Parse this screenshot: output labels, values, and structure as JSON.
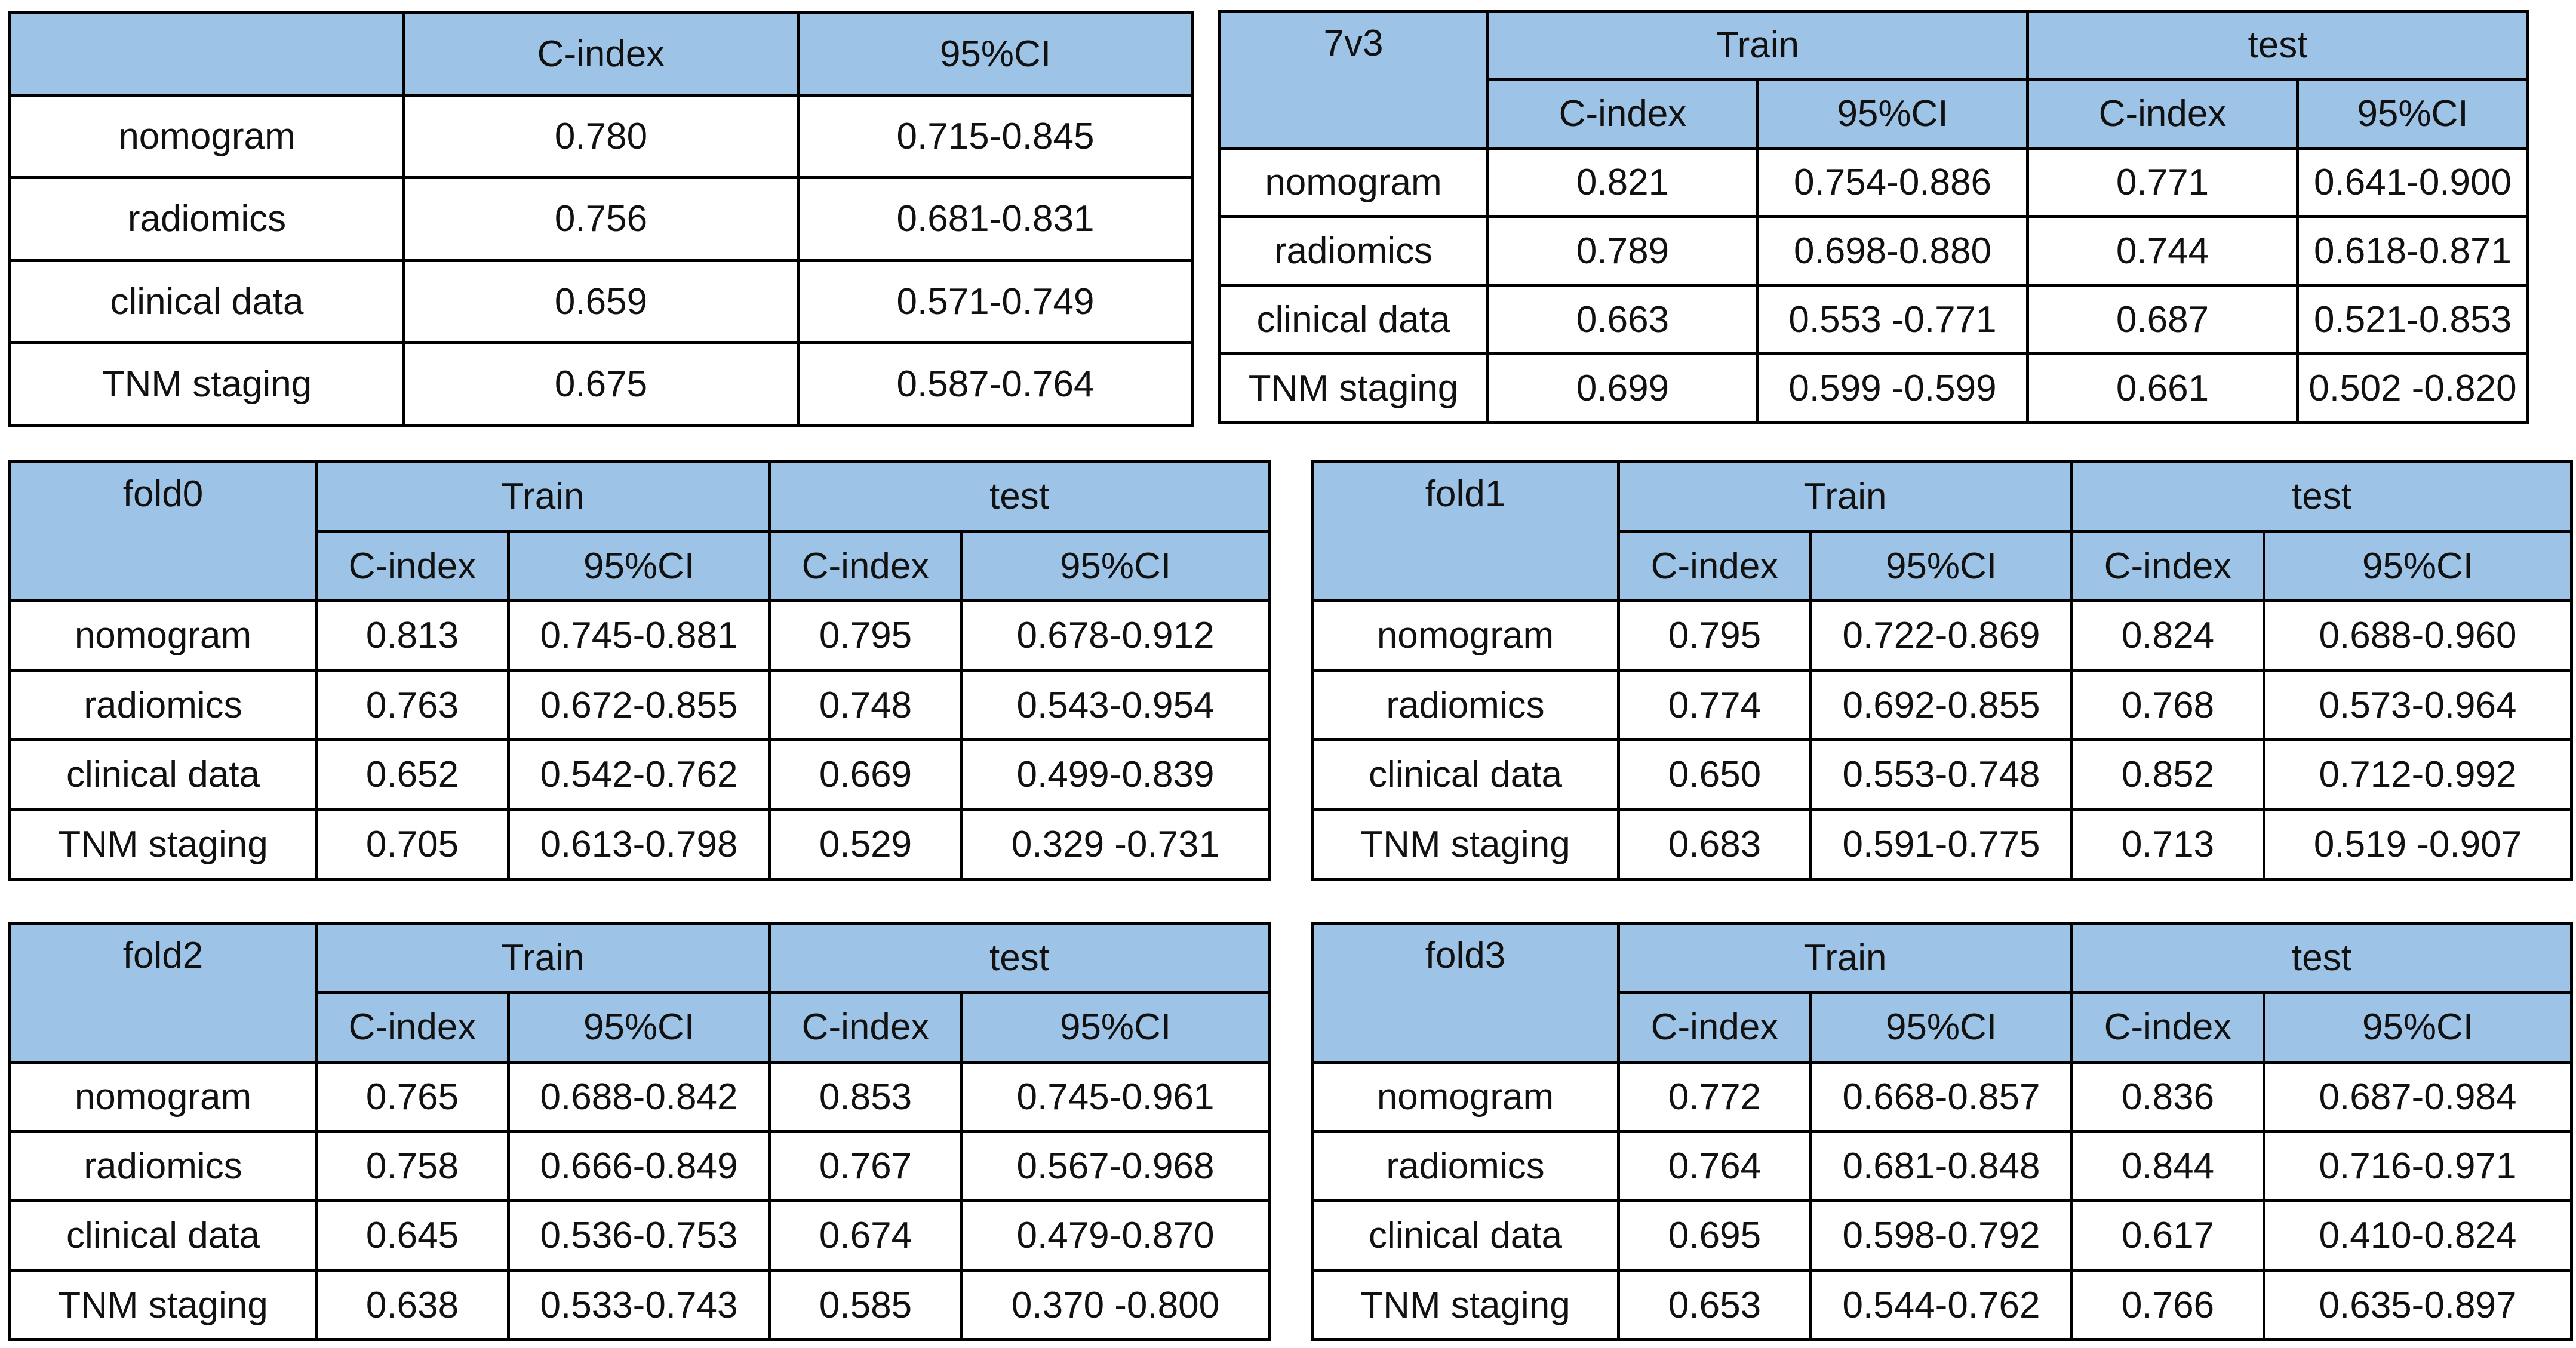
{
  "summary": {
    "header": [
      "",
      "C-index",
      "95%CI"
    ],
    "rows": [
      [
        "nomogram",
        "0.780",
        "0.715-0.845"
      ],
      [
        "radiomics",
        "0.756",
        "0.681-0.831"
      ],
      [
        "clinical data",
        "0.659",
        "0.571-0.749"
      ],
      [
        "TNM staging",
        "0.675",
        "0.587-0.764"
      ]
    ]
  },
  "split_tables": [
    {
      "label": "7v3",
      "group_train": "Train",
      "group_test": "test",
      "sub": [
        "C-index",
        "95%CI",
        "C-index",
        "95%CI"
      ],
      "rows": [
        [
          "nomogram",
          "0.821",
          "0.754-0.886",
          "0.771",
          "0.641-0.900"
        ],
        [
          "radiomics",
          "0.789",
          "0.698-0.880",
          "0.744",
          "0.618-0.871"
        ],
        [
          "clinical data",
          "0.663",
          "0.553 -0.771",
          "0.687",
          "0.521-0.853"
        ],
        [
          "TNM staging",
          "0.699",
          "0.599 -0.599",
          "0.661",
          "0.502 -0.820"
        ]
      ]
    },
    {
      "label": "fold0",
      "group_train": "Train",
      "group_test": "test",
      "sub": [
        "C-index",
        "95%CI",
        "C-index",
        "95%CI"
      ],
      "rows": [
        [
          "nomogram",
          "0.813",
          "0.745-0.881",
          "0.795",
          "0.678-0.912"
        ],
        [
          "radiomics",
          "0.763",
          "0.672-0.855",
          "0.748",
          "0.543-0.954"
        ],
        [
          "clinical data",
          "0.652",
          "0.542-0.762",
          "0.669",
          "0.499-0.839"
        ],
        [
          "TNM staging",
          "0.705",
          "0.613-0.798",
          "0.529",
          "0.329 -0.731"
        ]
      ]
    },
    {
      "label": "fold1",
      "group_train": "Train",
      "group_test": "test",
      "sub": [
        "C-index",
        "95%CI",
        "C-index",
        "95%CI"
      ],
      "rows": [
        [
          "nomogram",
          "0.795",
          "0.722-0.869",
          "0.824",
          "0.688-0.960"
        ],
        [
          "radiomics",
          "0.774",
          "0.692-0.855",
          "0.768",
          "0.573-0.964"
        ],
        [
          "clinical data",
          "0.650",
          "0.553-0.748",
          "0.852",
          "0.712-0.992"
        ],
        [
          "TNM staging",
          "0.683",
          "0.591-0.775",
          "0.713",
          "0.519 -0.907"
        ]
      ]
    },
    {
      "label": "fold2",
      "group_train": "Train",
      "group_test": "test",
      "sub": [
        "C-index",
        "95%CI",
        "C-index",
        "95%CI"
      ],
      "rows": [
        [
          "nomogram",
          "0.765",
          "0.688-0.842",
          "0.853",
          "0.745-0.961"
        ],
        [
          "radiomics",
          "0.758",
          "0.666-0.849",
          "0.767",
          "0.567-0.968"
        ],
        [
          "clinical data",
          "0.645",
          "0.536-0.753",
          "0.674",
          "0.479-0.870"
        ],
        [
          "TNM staging",
          "0.638",
          "0.533-0.743",
          "0.585",
          "0.370 -0.800"
        ]
      ]
    },
    {
      "label": "fold3",
      "group_train": "Train",
      "group_test": "test",
      "sub": [
        "C-index",
        "95%CI",
        "C-index",
        "95%CI"
      ],
      "rows": [
        [
          "nomogram",
          "0.772",
          "0.668-0.857",
          "0.836",
          "0.687-0.984"
        ],
        [
          "radiomics",
          "0.764",
          "0.681-0.848",
          "0.844",
          "0.716-0.971"
        ],
        [
          "clinical data",
          "0.695",
          "0.598-0.792",
          "0.617",
          "0.410-0.824"
        ],
        [
          "TNM staging",
          "0.653",
          "0.544-0.762",
          "0.766",
          "0.635-0.897"
        ]
      ]
    }
  ],
  "colors": {
    "header_fill": "#9dc3e6",
    "border": "#000000",
    "text": "#111111"
  }
}
